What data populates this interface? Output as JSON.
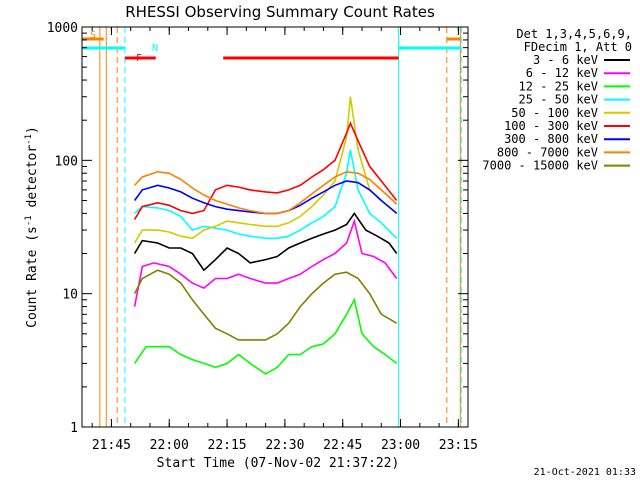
{
  "chart_data": {
    "type": "line",
    "title": "RHESSI Observing Summary Count Rates",
    "xlabel": "Start Time (07-Nov-02 21:37:22)",
    "ylabel_main": "Count Rate (s",
    "ylabel_sup1": "-1",
    "ylabel_mid": " detector",
    "ylabel_sup2": "-1",
    "ylabel_end": ")",
    "y_scale": "log",
    "ylim": [
      1,
      1000
    ],
    "xlim": [
      "21:37:22",
      "23:17:30"
    ],
    "x_ticks": [
      "21:45",
      "22:00",
      "22:15",
      "22:30",
      "22:45",
      "23:00",
      "23:15"
    ],
    "y_ticks": [
      "1",
      "10",
      "100",
      "1000"
    ],
    "legend_header": [
      "Det 1,3,4,5,6,9,",
      "FDecim 1, Att 0"
    ],
    "series": [
      {
        "name": "3 - 6 keV",
        "color": "#000000",
        "points": [
          [
            "21:51",
            20
          ],
          [
            "21:53",
            25
          ],
          [
            "21:57",
            24
          ],
          [
            "22:00",
            22
          ],
          [
            "22:03",
            22
          ],
          [
            "22:06",
            20
          ],
          [
            "22:09",
            15
          ],
          [
            "22:12",
            18
          ],
          [
            "22:15",
            22
          ],
          [
            "22:18",
            20
          ],
          [
            "22:21",
            17
          ],
          [
            "22:25",
            18
          ],
          [
            "22:28",
            19
          ],
          [
            "22:31",
            22
          ],
          [
            "22:34",
            24
          ],
          [
            "22:37",
            26
          ],
          [
            "22:40",
            28
          ],
          [
            "22:43",
            30
          ],
          [
            "22:46",
            33
          ],
          [
            "22:48",
            40
          ],
          [
            "22:51",
            30
          ],
          [
            "22:54",
            27
          ],
          [
            "22:57",
            24
          ],
          [
            "22:59",
            20
          ]
        ]
      },
      {
        "name": "6 - 12 keV",
        "color": "#ff00ff",
        "points": [
          [
            "21:51",
            8
          ],
          [
            "21:53",
            16
          ],
          [
            "21:56",
            17
          ],
          [
            "22:00",
            16
          ],
          [
            "22:03",
            14
          ],
          [
            "22:06",
            12
          ],
          [
            "22:09",
            11
          ],
          [
            "22:12",
            13
          ],
          [
            "22:15",
            13
          ],
          [
            "22:18",
            14
          ],
          [
            "22:21",
            13
          ],
          [
            "22:25",
            12
          ],
          [
            "22:28",
            12
          ],
          [
            "22:31",
            13
          ],
          [
            "22:34",
            14
          ],
          [
            "22:37",
            16
          ],
          [
            "22:40",
            18
          ],
          [
            "22:43",
            20
          ],
          [
            "22:46",
            24
          ],
          [
            "22:48",
            35
          ],
          [
            "22:50",
            20
          ],
          [
            "22:53",
            19
          ],
          [
            "22:56",
            17
          ],
          [
            "22:59",
            13
          ]
        ]
      },
      {
        "name": "12 - 25 keV",
        "color": "#00ff00",
        "points": [
          [
            "21:51",
            3
          ],
          [
            "21:54",
            4
          ],
          [
            "21:57",
            4
          ],
          [
            "22:00",
            4
          ],
          [
            "22:03",
            3.5
          ],
          [
            "22:06",
            3.2
          ],
          [
            "22:09",
            3
          ],
          [
            "22:12",
            2.8
          ],
          [
            "22:15",
            3
          ],
          [
            "22:18",
            3.5
          ],
          [
            "22:21",
            3
          ],
          [
            "22:25",
            2.5
          ],
          [
            "22:28",
            2.8
          ],
          [
            "22:31",
            3.5
          ],
          [
            "22:34",
            3.5
          ],
          [
            "22:37",
            4
          ],
          [
            "22:40",
            4.2
          ],
          [
            "22:43",
            5
          ],
          [
            "22:46",
            7
          ],
          [
            "22:48",
            9
          ],
          [
            "22:50",
            5
          ],
          [
            "22:53",
            4
          ],
          [
            "22:56",
            3.5
          ],
          [
            "22:59",
            3
          ]
        ]
      },
      {
        "name": "25 - 50 keV",
        "color": "#00ffff",
        "points": [
          [
            "21:51",
            40
          ],
          [
            "21:53",
            45
          ],
          [
            "21:57",
            44
          ],
          [
            "22:00",
            42
          ],
          [
            "22:03",
            38
          ],
          [
            "22:06",
            30
          ],
          [
            "22:09",
            32
          ],
          [
            "22:12",
            31
          ],
          [
            "22:15",
            30
          ],
          [
            "22:18",
            28
          ],
          [
            "22:21",
            27
          ],
          [
            "22:25",
            26
          ],
          [
            "22:28",
            26
          ],
          [
            "22:31",
            27
          ],
          [
            "22:34",
            30
          ],
          [
            "22:37",
            34
          ],
          [
            "22:40",
            38
          ],
          [
            "22:43",
            45
          ],
          [
            "22:46",
            80
          ],
          [
            "22:47",
            120
          ],
          [
            "22:49",
            60
          ],
          [
            "22:52",
            40
          ],
          [
            "22:55",
            34
          ],
          [
            "22:59",
            26
          ]
        ]
      },
      {
        "name": "50 - 100 keV",
        "color": "#cccc00",
        "points": [
          [
            "21:51",
            24
          ],
          [
            "21:53",
            30
          ],
          [
            "21:57",
            30
          ],
          [
            "22:00",
            29
          ],
          [
            "22:03",
            27
          ],
          [
            "22:06",
            26
          ],
          [
            "22:09",
            30
          ],
          [
            "22:12",
            32
          ],
          [
            "22:15",
            35
          ],
          [
            "22:18",
            34
          ],
          [
            "22:21",
            33
          ],
          [
            "22:25",
            32
          ],
          [
            "22:28",
            32
          ],
          [
            "22:31",
            34
          ],
          [
            "22:34",
            38
          ],
          [
            "22:37",
            45
          ],
          [
            "22:40",
            55
          ],
          [
            "22:43",
            70
          ],
          [
            "22:46",
            150
          ],
          [
            "22:47",
            300
          ],
          [
            "22:49",
            120
          ],
          [
            "22:52",
            60
          ],
          [
            "22:55",
            50
          ],
          [
            "22:59",
            40
          ]
        ]
      },
      {
        "name": "100 - 300 keV",
        "color": "#ff0000",
        "points": [
          [
            "21:51",
            36
          ],
          [
            "21:53",
            45
          ],
          [
            "21:57",
            48
          ],
          [
            "22:00",
            46
          ],
          [
            "22:03",
            42
          ],
          [
            "22:06",
            40
          ],
          [
            "22:09",
            42
          ],
          [
            "22:12",
            60
          ],
          [
            "22:15",
            65
          ],
          [
            "22:18",
            63
          ],
          [
            "22:21",
            60
          ],
          [
            "22:25",
            58
          ],
          [
            "22:28",
            57
          ],
          [
            "22:31",
            60
          ],
          [
            "22:34",
            65
          ],
          [
            "22:37",
            75
          ],
          [
            "22:40",
            85
          ],
          [
            "22:43",
            100
          ],
          [
            "22:46",
            160
          ],
          [
            "22:47",
            190
          ],
          [
            "22:49",
            140
          ],
          [
            "22:52",
            90
          ],
          [
            "22:55",
            70
          ],
          [
            "22:59",
            50
          ]
        ]
      },
      {
        "name": "300 - 800 keV",
        "color": "#0000ff",
        "points": [
          [
            "21:51",
            50
          ],
          [
            "21:53",
            60
          ],
          [
            "21:57",
            65
          ],
          [
            "22:00",
            62
          ],
          [
            "22:03",
            58
          ],
          [
            "22:06",
            52
          ],
          [
            "22:09",
            48
          ],
          [
            "22:12",
            45
          ],
          [
            "22:15",
            43
          ],
          [
            "22:18",
            42
          ],
          [
            "22:21",
            41
          ],
          [
            "22:25",
            40
          ],
          [
            "22:28",
            40
          ],
          [
            "22:31",
            42
          ],
          [
            "22:34",
            46
          ],
          [
            "22:37",
            52
          ],
          [
            "22:40",
            58
          ],
          [
            "22:43",
            65
          ],
          [
            "22:46",
            70
          ],
          [
            "22:49",
            68
          ],
          [
            "22:52",
            60
          ],
          [
            "22:55",
            50
          ],
          [
            "22:59",
            40
          ]
        ]
      },
      {
        "name": "800 - 7000 keV",
        "color": "#ff8000",
        "points": [
          [
            "21:51",
            65
          ],
          [
            "21:53",
            75
          ],
          [
            "21:57",
            82
          ],
          [
            "22:00",
            80
          ],
          [
            "22:03",
            72
          ],
          [
            "22:06",
            62
          ],
          [
            "22:09",
            55
          ],
          [
            "22:12",
            50
          ],
          [
            "22:15",
            47
          ],
          [
            "22:18",
            44
          ],
          [
            "22:21",
            42
          ],
          [
            "22:25",
            40
          ],
          [
            "22:28",
            40
          ],
          [
            "22:31",
            42
          ],
          [
            "22:34",
            48
          ],
          [
            "22:37",
            56
          ],
          [
            "22:40",
            65
          ],
          [
            "22:43",
            75
          ],
          [
            "22:46",
            82
          ],
          [
            "22:49",
            80
          ],
          [
            "22:52",
            72
          ],
          [
            "22:55",
            60
          ],
          [
            "22:59",
            47
          ]
        ]
      },
      {
        "name": "7000 - 15000 keV",
        "color": "#808000",
        "points": [
          [
            "21:51",
            10
          ],
          [
            "21:53",
            13
          ],
          [
            "21:57",
            15
          ],
          [
            "22:00",
            14
          ],
          [
            "22:03",
            12
          ],
          [
            "22:06",
            9
          ],
          [
            "22:09",
            7
          ],
          [
            "22:12",
            5.5
          ],
          [
            "22:15",
            5
          ],
          [
            "22:18",
            4.5
          ],
          [
            "22:21",
            4.5
          ],
          [
            "22:25",
            4.5
          ],
          [
            "22:28",
            5
          ],
          [
            "22:31",
            6
          ],
          [
            "22:34",
            8
          ],
          [
            "22:37",
            10
          ],
          [
            "22:40",
            12
          ],
          [
            "22:43",
            14
          ],
          [
            "22:46",
            14.5
          ],
          [
            "22:49",
            13
          ],
          [
            "22:52",
            10
          ],
          [
            "22:55",
            7
          ],
          [
            "22:59",
            6
          ]
        ]
      }
    ],
    "flags": [
      {
        "label": "S",
        "color": "#ff8000",
        "spans": [
          [
            "21:37:22",
            "21:43"
          ],
          [
            "23:12",
            "23:15:30"
          ]
        ]
      },
      {
        "label": "N",
        "color": "#00ffff",
        "spans": [
          [
            "21:37:22",
            "21:48:30"
          ],
          [
            "22:59:30",
            "23:15:30"
          ]
        ]
      },
      {
        "label": "F",
        "color": "#ff0000",
        "spans": [
          [
            "21:48:30",
            "21:56:30"
          ],
          [
            "22:14",
            "22:59:30"
          ]
        ]
      }
    ],
    "vlines": [
      {
        "time": "21:42",
        "color": "#ff8000",
        "style": "solid"
      },
      {
        "time": "21:43:40",
        "color": "#ff8000",
        "style": "solid"
      },
      {
        "time": "21:46:30",
        "color": "#ff8000",
        "style": "dashed"
      },
      {
        "time": "21:48:30",
        "color": "#00ffff",
        "style": "dashed"
      },
      {
        "time": "22:59:30",
        "color": "#00ffff",
        "style": "solid"
      },
      {
        "time": "23:12",
        "color": "#ff8000",
        "style": "dashed"
      },
      {
        "time": "23:15:30",
        "color": "#ff8000",
        "style": "solid"
      },
      {
        "time": "23:15:45",
        "color": "#00ffff",
        "style": "dashed"
      }
    ]
  },
  "footer": {
    "timestamp": "21-Oct-2021 01:33"
  }
}
